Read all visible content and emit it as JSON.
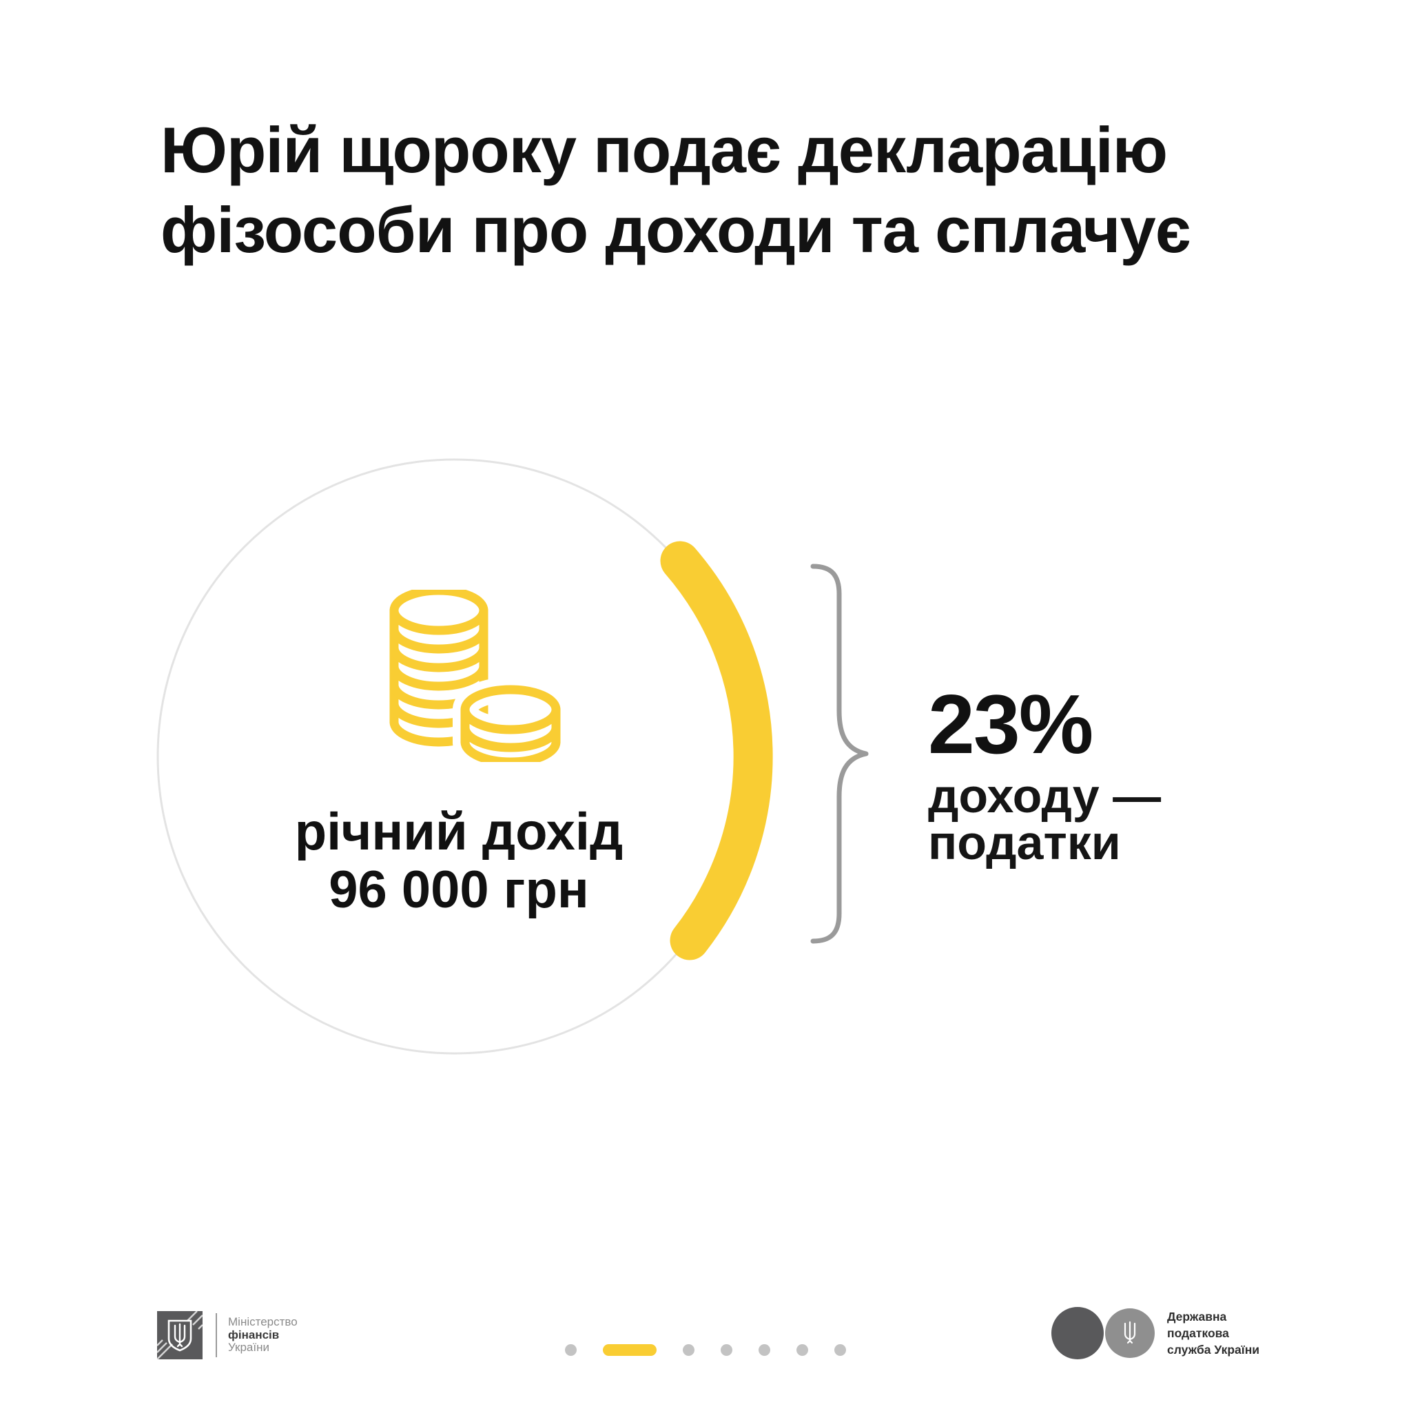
{
  "title": {
    "line1": "Юрій щороку подає декларацію",
    "line2": "фізособи про доходи та сплачує"
  },
  "income_circle": {
    "icon": "coins-icon",
    "label_line1": "річний дохід",
    "label_line2": "96 000 грн"
  },
  "tax_callout": {
    "percent": "23%",
    "label_line1": "доходу —",
    "label_line2": "податки"
  },
  "footer": {
    "ministry": {
      "line1": "Міністерство",
      "line2": "фінансів",
      "line3": "України",
      "emblem": "tryzub-shield-icon"
    },
    "pagination": {
      "total": 7,
      "active_index": 1
    },
    "tax_service": {
      "line1": "Державна",
      "line2": "податкова",
      "line3": "служба України",
      "emblem": "tryzub-icon"
    }
  },
  "colors": {
    "accent_yellow": "#F9CD33",
    "circle_outline": "#E3E3E3",
    "brace_gray": "#9A9A9A",
    "dot_gray": "#C3C3C3",
    "logo_dark": "#59595B",
    "logo_light": "#8F8F8F"
  }
}
